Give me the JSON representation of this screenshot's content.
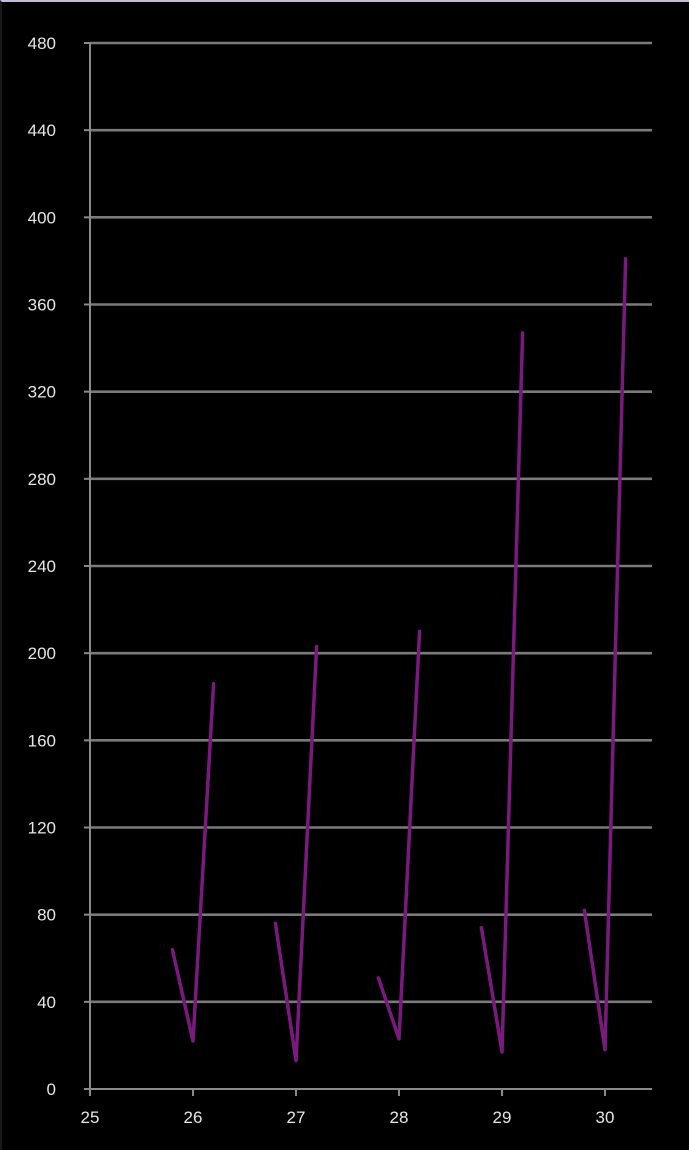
{
  "chart_data": {
    "type": "line",
    "title": "",
    "xlabel": "",
    "ylabel": "",
    "xlim": [
      25,
      30.5
    ],
    "ylim": [
      0,
      480
    ],
    "x_ticks": [
      25,
      26,
      27,
      28,
      29,
      30
    ],
    "y_ticks": [
      0,
      40,
      80,
      120,
      160,
      200,
      240,
      280,
      320,
      360,
      400,
      440,
      480
    ],
    "grid": true,
    "legend": "none",
    "colors": {
      "background": "#000000",
      "series": "#7a1a7e",
      "grid": "#7a7a7a",
      "text": "#e6e6e6"
    },
    "series": [
      {
        "x": [
          25.8,
          26.0,
          26.2,
          26.8,
          27.0,
          27.2,
          27.8,
          28.0,
          28.2,
          28.8,
          29.0,
          29.2,
          29.8,
          30.0,
          30.2
        ],
        "y": [
          64,
          22,
          186,
          76,
          13,
          203,
          51,
          23,
          210,
          74,
          17,
          347,
          82,
          18,
          381
        ]
      }
    ]
  }
}
